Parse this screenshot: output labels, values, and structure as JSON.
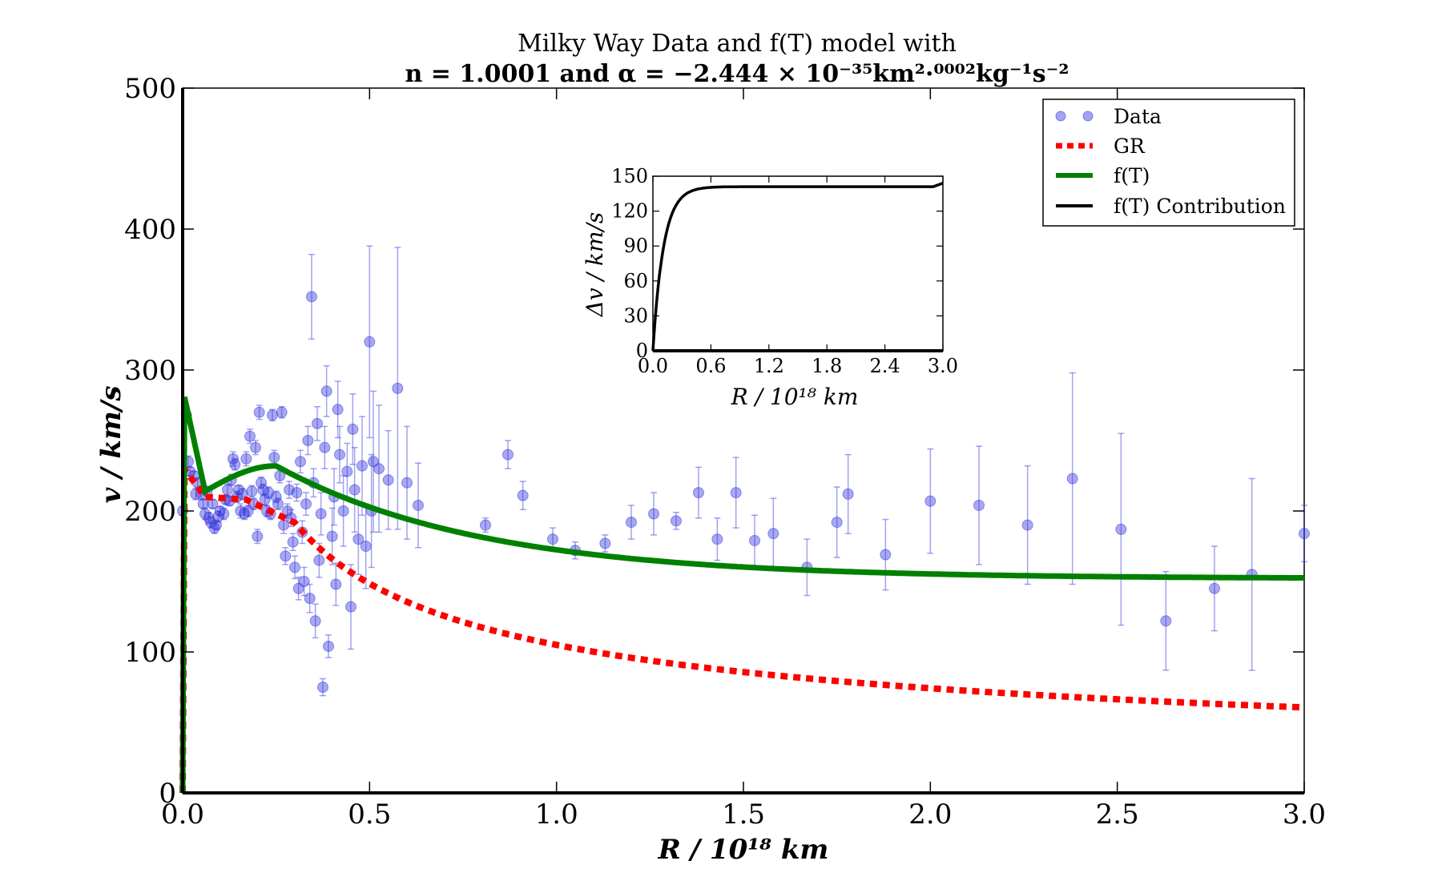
{
  "chart_data": {
    "type": "scatter",
    "title": "Milky Way Data and  f(T) model with",
    "subtitle": "n = 1.0001 and α = −2.444 × 10⁻³⁵km²·⁰⁰⁰²kg⁻¹s⁻²",
    "xlabel": "R / 10¹⁸ km",
    "ylabel": "v / km/s",
    "xlim": [
      0,
      3.0
    ],
    "ylim": [
      0,
      500
    ],
    "xticks": [
      "0.0",
      "0.5",
      "1.0",
      "1.5",
      "2.0",
      "2.5",
      "3.0"
    ],
    "yticks": [
      "0",
      "100",
      "200",
      "300",
      "400",
      "500"
    ],
    "legend_position": "top-right",
    "legend": [
      "Data",
      "GR",
      "f(T)",
      "f(T) Contribution"
    ],
    "colors": {
      "data": "#3333dd",
      "gr": "#ff0000",
      "ft": "#008000",
      "contribution": "#000000"
    },
    "data_points": [
      [
        0.0,
        200,
        3
      ],
      [
        0.01,
        268,
        4
      ],
      [
        0.015,
        235,
        4
      ],
      [
        0.02,
        228,
        3
      ],
      [
        0.03,
        225,
        3
      ],
      [
        0.035,
        212,
        4
      ],
      [
        0.04,
        220,
        3
      ],
      [
        0.05,
        212,
        4
      ],
      [
        0.055,
        205,
        3
      ],
      [
        0.06,
        198,
        4
      ],
      [
        0.065,
        214,
        3
      ],
      [
        0.07,
        195,
        4
      ],
      [
        0.075,
        192,
        4
      ],
      [
        0.08,
        205,
        3
      ],
      [
        0.085,
        188,
        4
      ],
      [
        0.09,
        190,
        3
      ],
      [
        0.095,
        196,
        4
      ],
      [
        0.1,
        200,
        3
      ],
      [
        0.11,
        198,
        4
      ],
      [
        0.115,
        208,
        3
      ],
      [
        0.12,
        215,
        4
      ],
      [
        0.125,
        207,
        3
      ],
      [
        0.13,
        222,
        4
      ],
      [
        0.135,
        237,
        5
      ],
      [
        0.14,
        233,
        4
      ],
      [
        0.145,
        210,
        4
      ],
      [
        0.15,
        215,
        3
      ],
      [
        0.155,
        200,
        5
      ],
      [
        0.16,
        212,
        4
      ],
      [
        0.165,
        198,
        4
      ],
      [
        0.17,
        237,
        5
      ],
      [
        0.175,
        200,
        4
      ],
      [
        0.18,
        253,
        5
      ],
      [
        0.185,
        214,
        4
      ],
      [
        0.19,
        205,
        4
      ],
      [
        0.195,
        245,
        5
      ],
      [
        0.2,
        182,
        5
      ],
      [
        0.205,
        270,
        5
      ],
      [
        0.21,
        220,
        4
      ],
      [
        0.215,
        215,
        4
      ],
      [
        0.22,
        208,
        4
      ],
      [
        0.225,
        200,
        4
      ],
      [
        0.23,
        213,
        4
      ],
      [
        0.235,
        198,
        4
      ],
      [
        0.24,
        268,
        4
      ],
      [
        0.245,
        238,
        5
      ],
      [
        0.25,
        210,
        4
      ],
      [
        0.255,
        205,
        4
      ],
      [
        0.26,
        225,
        5
      ],
      [
        0.265,
        270,
        4
      ],
      [
        0.27,
        190,
        6
      ],
      [
        0.275,
        168,
        6
      ],
      [
        0.28,
        200,
        5
      ],
      [
        0.285,
        215,
        6
      ],
      [
        0.29,
        195,
        6
      ],
      [
        0.295,
        178,
        6
      ],
      [
        0.3,
        160,
        8
      ],
      [
        0.305,
        213,
        6
      ],
      [
        0.31,
        145,
        8
      ],
      [
        0.315,
        235,
        8
      ],
      [
        0.32,
        185,
        8
      ],
      [
        0.325,
        150,
        10
      ],
      [
        0.33,
        205,
        8
      ],
      [
        0.335,
        250,
        10
      ],
      [
        0.34,
        138,
        10
      ],
      [
        0.345,
        352,
        30
      ],
      [
        0.35,
        220,
        10
      ],
      [
        0.355,
        122,
        12
      ],
      [
        0.36,
        262,
        12
      ],
      [
        0.365,
        165,
        12
      ],
      [
        0.37,
        198,
        15
      ],
      [
        0.375,
        75,
        6
      ],
      [
        0.38,
        245,
        15
      ],
      [
        0.385,
        285,
        18
      ],
      [
        0.39,
        104,
        8
      ],
      [
        0.4,
        182,
        20
      ],
      [
        0.405,
        210,
        20
      ],
      [
        0.41,
        148,
        15
      ],
      [
        0.415,
        272,
        20
      ],
      [
        0.42,
        240,
        20
      ],
      [
        0.43,
        200,
        25
      ],
      [
        0.44,
        228,
        20
      ],
      [
        0.45,
        132,
        30
      ],
      [
        0.455,
        258,
        25
      ],
      [
        0.46,
        215,
        30
      ],
      [
        0.47,
        180,
        25
      ],
      [
        0.48,
        232,
        35
      ],
      [
        0.49,
        175,
        30
      ],
      [
        0.5,
        320,
        68
      ],
      [
        0.505,
        200,
        40
      ],
      [
        0.51,
        235,
        50
      ],
      [
        0.525,
        230,
        45
      ],
      [
        0.55,
        222,
        35
      ],
      [
        0.575,
        287,
        100
      ],
      [
        0.6,
        220,
        40
      ],
      [
        0.63,
        204,
        30
      ],
      [
        0.81,
        190,
        5
      ],
      [
        0.87,
        240,
        10
      ],
      [
        0.91,
        211,
        10
      ],
      [
        0.99,
        180,
        8
      ],
      [
        1.05,
        172,
        6
      ],
      [
        1.13,
        177,
        6
      ],
      [
        1.2,
        192,
        12
      ],
      [
        1.26,
        198,
        15
      ],
      [
        1.32,
        193,
        6
      ],
      [
        1.38,
        213,
        18
      ],
      [
        1.43,
        180,
        15
      ],
      [
        1.48,
        213,
        25
      ],
      [
        1.53,
        179,
        18
      ],
      [
        1.58,
        184,
        25
      ],
      [
        1.67,
        160,
        20
      ],
      [
        1.75,
        192,
        25
      ],
      [
        1.78,
        212,
        28
      ],
      [
        1.88,
        169,
        25
      ],
      [
        2.0,
        207,
        37
      ],
      [
        2.13,
        204,
        42
      ],
      [
        2.26,
        190,
        42
      ],
      [
        2.38,
        223,
        75
      ],
      [
        2.51,
        187,
        68
      ],
      [
        2.63,
        122,
        35
      ],
      [
        2.76,
        145,
        30
      ],
      [
        2.86,
        155,
        68
      ],
      [
        3.0,
        184,
        20
      ]
    ],
    "inset": {
      "xlabel": "R / 10¹⁸ km",
      "ylabel": "Δv / km/s",
      "xlim": [
        0,
        3.0
      ],
      "ylim": [
        0,
        150
      ],
      "xticks": [
        "0.0",
        "0.6",
        "1.2",
        "1.8",
        "2.4",
        "3.0"
      ],
      "yticks": [
        "0",
        "30",
        "60",
        "90",
        "120",
        "150"
      ],
      "plateau": 141
    }
  }
}
